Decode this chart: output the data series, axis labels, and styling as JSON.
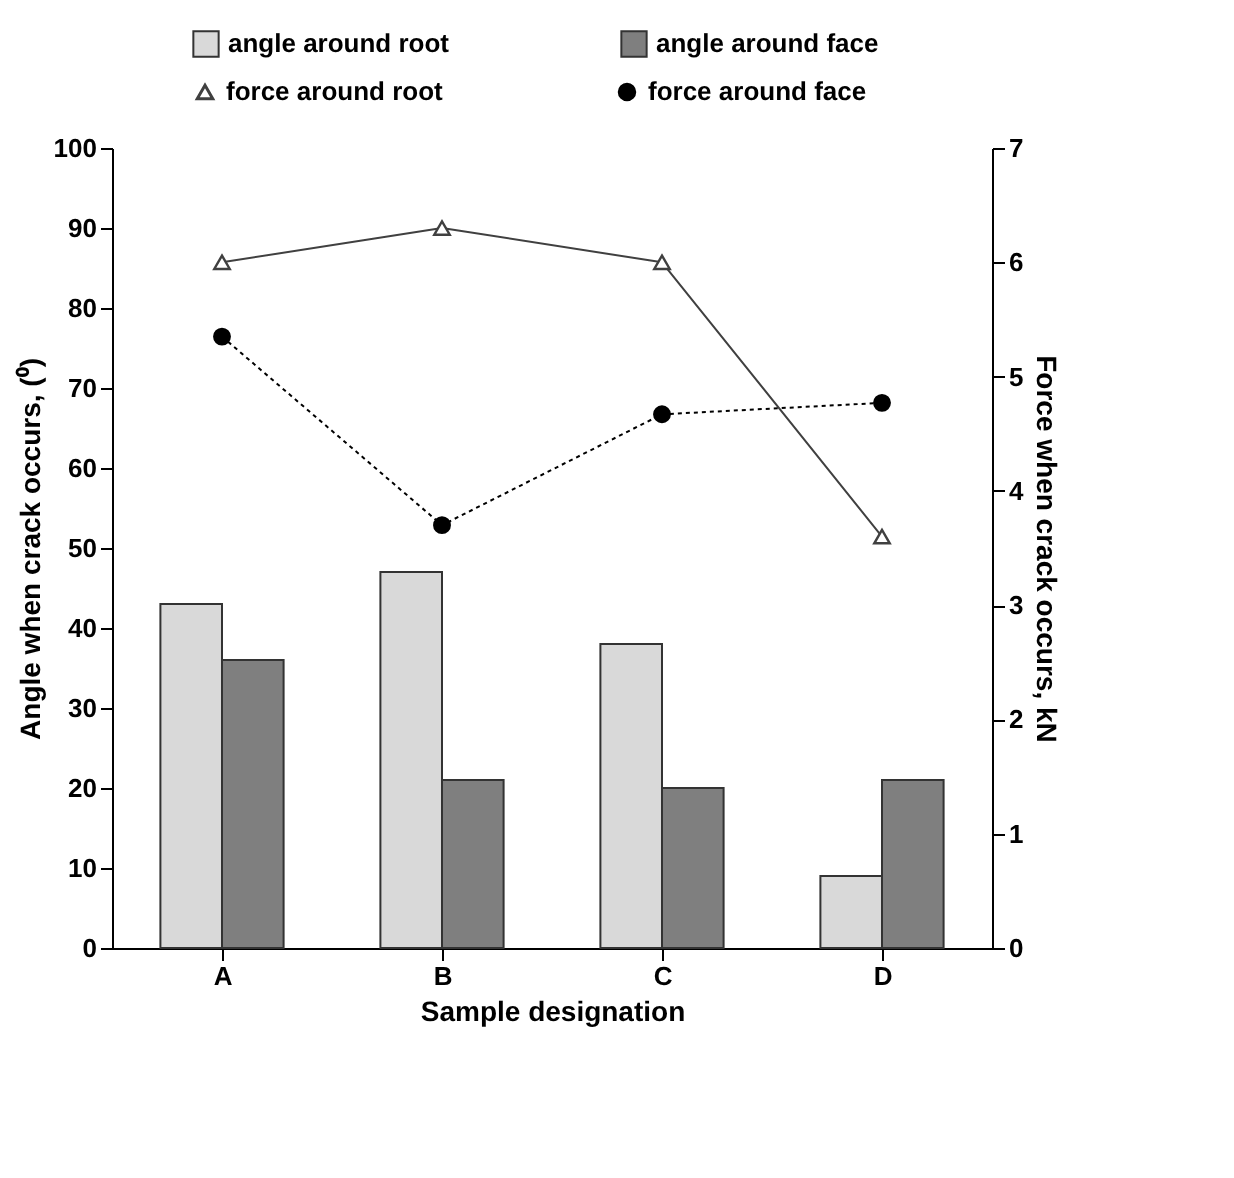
{
  "chart_data": {
    "type": "bar",
    "xlabel": "Sample designation",
    "ylabel": "Angle when crack occurs, (⁰)",
    "y2label": "Force when crack occurs, kN",
    "categories": [
      "A",
      "B",
      "C",
      "D"
    ],
    "series": [
      {
        "name": "angle around root",
        "color": "#d9d9d9",
        "values": [
          43,
          47,
          38,
          9
        ]
      },
      {
        "name": "angle around face",
        "color": "#7f7f7f",
        "values": [
          36,
          21,
          20,
          21
        ]
      },
      {
        "name": "force around root",
        "type": "line",
        "axis": "y2",
        "color": "#404040",
        "marker": "triangle",
        "line_style": "solid",
        "values": [
          6.0,
          6.3,
          6.0,
          3.6
        ]
      },
      {
        "name": "force around face",
        "type": "line",
        "axis": "y2",
        "color": "#000000",
        "marker": "circle",
        "line_style": "dotted",
        "values": [
          5.35,
          3.7,
          4.67,
          4.77
        ]
      }
    ],
    "ylim": [
      0,
      100
    ],
    "yticks": [
      0,
      10,
      20,
      30,
      40,
      50,
      60,
      70,
      80,
      90,
      100
    ],
    "y2lim": [
      0,
      7
    ],
    "y2ticks": [
      0,
      1,
      2,
      3,
      4,
      5,
      6,
      7
    ],
    "grid": false,
    "legend": "top"
  }
}
